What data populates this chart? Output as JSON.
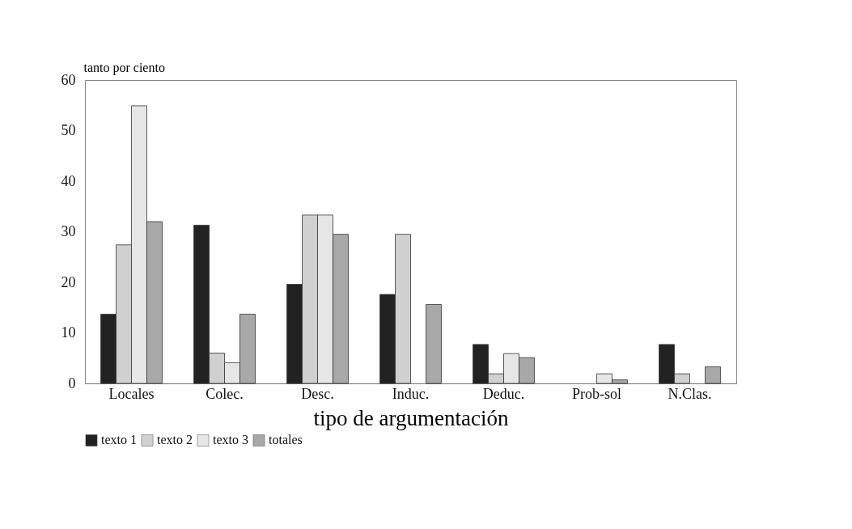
{
  "chart_data": {
    "type": "bar",
    "xlabel": "tipo de argumentación",
    "ylabel": "tanto por ciento",
    "categories": [
      "Locales",
      "Colec.",
      "Desc.",
      "Induc.",
      "Deduc.",
      "Prob-sol",
      "N.Clas."
    ],
    "series": [
      {
        "name": "texto 1",
        "color": "#222222",
        "values": [
          13.7,
          31.3,
          19.6,
          17.6,
          7.7,
          0,
          7.7
        ]
      },
      {
        "name": "texto 2",
        "color": "#d0d0d0",
        "values": [
          27.4,
          6.0,
          33.3,
          29.5,
          1.9,
          0,
          1.9
        ]
      },
      {
        "name": "texto 3",
        "color": "#e6e6e6",
        "values": [
          54.9,
          4.1,
          33.3,
          0,
          5.9,
          1.9,
          0
        ]
      },
      {
        "name": "totales",
        "color": "#a8a8a8",
        "values": [
          32.0,
          13.7,
          29.5,
          15.6,
          5.1,
          0.7,
          3.3
        ]
      }
    ],
    "ylim": [
      0,
      60
    ],
    "yticks": [
      0,
      10,
      20,
      30,
      40,
      50,
      60
    ],
    "grid": false,
    "legend": "bottom"
  }
}
